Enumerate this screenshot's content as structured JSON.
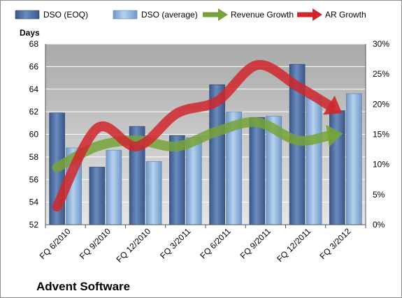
{
  "chart_data": {
    "type": "bar",
    "title": "Advent Software",
    "ylabel": "Days",
    "ylim": [
      52,
      68
    ],
    "y2lim": [
      0,
      30
    ],
    "y_ticks": [
      "52",
      "54",
      "56",
      "58",
      "60",
      "62",
      "64",
      "66",
      "68"
    ],
    "y2_ticks": [
      "0%",
      "5%",
      "10%",
      "15%",
      "20%",
      "25%",
      "30%"
    ],
    "categories": [
      "FQ 6/2010",
      "FQ 9/2010",
      "FQ 12/2010",
      "FQ 3/2011",
      "FQ 6/2011",
      "FQ 9/2011",
      "FQ 12/2011",
      "FQ 3/2012"
    ],
    "legend_position": "top",
    "grid": true,
    "series": [
      {
        "name": "DSO (EOQ)",
        "type": "bar",
        "axis": "left",
        "color": "#4f6fa0",
        "values": [
          61.9,
          57.1,
          60.7,
          59.9,
          64.4,
          61.5,
          66.2,
          62.1
        ]
      },
      {
        "name": "DSO (average)",
        "type": "bar",
        "axis": "left",
        "color": "#8fb4dc",
        "values": [
          58.8,
          58.6,
          57.6,
          59.7,
          62.0,
          61.6,
          63.3,
          63.6
        ]
      },
      {
        "name": "Revenue Growth",
        "type": "line",
        "axis": "right",
        "unit": "%",
        "color": "#77a33a",
        "values": [
          9.5,
          13.0,
          14.0,
          13.0,
          15.5,
          17.0,
          14.0,
          15.0
        ]
      },
      {
        "name": "AR Growth",
        "type": "line",
        "axis": "right",
        "unit": "%",
        "color": "#d0262b",
        "values": [
          3.0,
          16.0,
          13.0,
          18.5,
          20.5,
          26.5,
          23.0,
          19.0
        ]
      }
    ]
  }
}
